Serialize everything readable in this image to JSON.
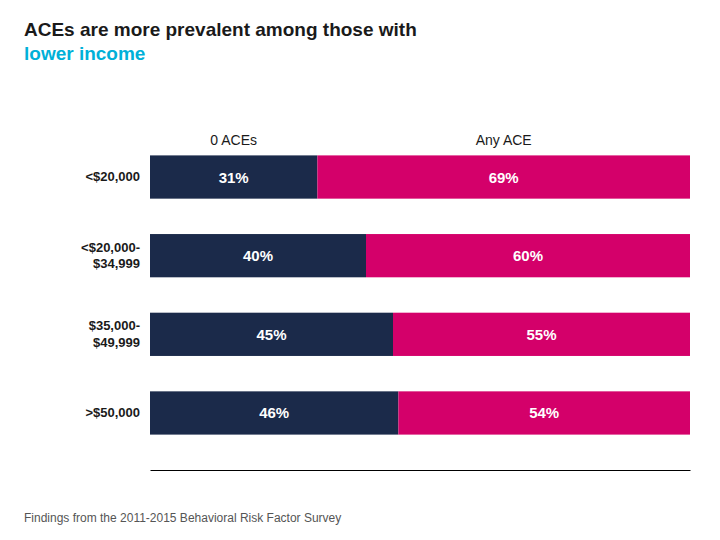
{
  "chart_data": {
    "type": "bar",
    "orientation": "horizontal",
    "stacked": true,
    "title": "ACEs are more prevalent among those with\nlower income",
    "categories": [
      "<$20,000",
      "<$20,000-\n$34,999",
      "$35,000-\n$49,999",
      ">$50,000"
    ],
    "series": [
      {
        "name": "0 ACEs",
        "color": "#1b2a4a",
        "values": [
          31,
          40,
          45,
          46
        ],
        "value_labels": [
          "31%",
          "40%",
          "45%",
          "46%"
        ]
      },
      {
        "name": "Any ACE",
        "color": "#d4006a",
        "values": [
          69,
          60,
          55,
          54
        ],
        "value_labels": [
          "69%",
          "60%",
          "55%",
          "54%"
        ]
      }
    ],
    "xlim": [
      0,
      100
    ],
    "data_labels": true,
    "tick_labels": "y",
    "grid": false,
    "annotations": [
      "Findings from the 2011-2015 Behavioral Risk Factor Survey"
    ]
  }
}
